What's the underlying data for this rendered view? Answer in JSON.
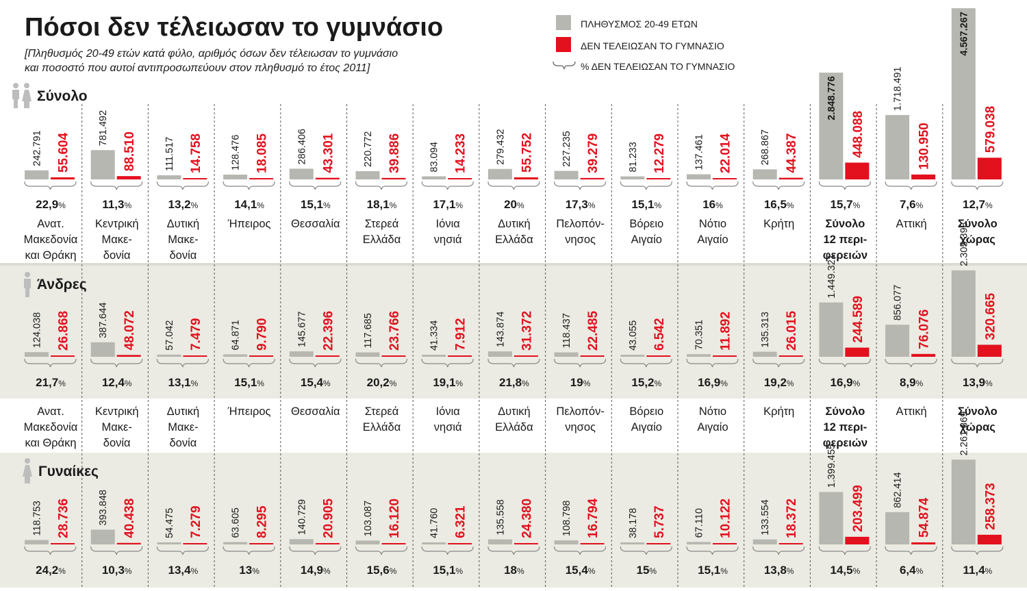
{
  "title": "Πόσοι δεν τέλειωσαν το γυμνάσιο",
  "subtitle_lines": [
    "[Πληθυσμός 20-49 ετών κατά φύλο, αριθμός όσων δεν τέλειωσαν το γυμνάσιο",
    "και ποσοστό που αυτοί αντιπροσωπεύουν στον πληθυσμό το έτος 2011]"
  ],
  "legend": {
    "population": "ΠΛΗΘΥΣΜΟΣ 20-49 ΕΤΩΝ",
    "not_completed": "ΔΕΝ ΤΕΛΕΙΩΣΑΝ ΤΟ ΓΥΜΝΑΣΙΟ",
    "percent": "% ΔΕΝ ΤΕΛΕΙΩΣΑΝ ΤΟ ΓΥΜΝΑΣΙΟ"
  },
  "colors": {
    "population": "#b7b7b1",
    "not_completed": "#e3101e",
    "band": "#ebebe3",
    "text": "#1a1a1a",
    "divider": "#555555"
  },
  "icons": {
    "total": "male-female-icon",
    "men": "male-icon",
    "women": "female-icon"
  },
  "chart_data": {
    "type": "bar",
    "categories": [
      {
        "lines": [
          "Ανατ.",
          "Μακεδονία",
          "και Θράκη"
        ],
        "bold": false
      },
      {
        "lines": [
          "Κεντρική",
          "Μακε-",
          "δονία"
        ],
        "bold": false
      },
      {
        "lines": [
          "Δυτική",
          "Μακε-",
          "δονία"
        ],
        "bold": false
      },
      {
        "lines": [
          "Ήπειρος"
        ],
        "bold": false
      },
      {
        "lines": [
          "Θεσσαλία"
        ],
        "bold": false
      },
      {
        "lines": [
          "Στερεά",
          "Ελλάδα"
        ],
        "bold": false
      },
      {
        "lines": [
          "Ιόνια",
          "νησιά"
        ],
        "bold": false
      },
      {
        "lines": [
          "Δυτική",
          "Ελλάδα"
        ],
        "bold": false
      },
      {
        "lines": [
          "Πελοπόν-",
          "νησος"
        ],
        "bold": false
      },
      {
        "lines": [
          "Βόρειο",
          "Αιγαίο"
        ],
        "bold": false
      },
      {
        "lines": [
          "Νότιο",
          "Αιγαίο"
        ],
        "bold": false
      },
      {
        "lines": [
          "Κρήτη"
        ],
        "bold": false
      },
      {
        "lines": [
          "Σύνολο",
          "12 περι-",
          "φερειών"
        ],
        "bold": true
      },
      {
        "lines": [
          "Αττική"
        ],
        "bold": false
      },
      {
        "lines": [
          "Σύνολο",
          "χώρας"
        ],
        "bold": true
      }
    ],
    "panels": [
      {
        "label": "Σύνολο",
        "population": [
          242791,
          781492,
          111517,
          128476,
          286406,
          220772,
          83094,
          279432,
          227235,
          81233,
          137461,
          268867,
          2848776,
          1718491,
          4567267
        ],
        "population_labels": [
          "242.791",
          "781.492",
          "111.517",
          "128.476",
          "286.406",
          "220.772",
          "83.094",
          "279.432",
          "227.235",
          "81.233",
          "137.461",
          "268.867",
          "2.848.776",
          "1.718.491",
          "4.567.267"
        ],
        "not_completed": [
          55604,
          88510,
          14758,
          18085,
          43301,
          39886,
          14233,
          55752,
          39279,
          12279,
          22014,
          44387,
          448088,
          130950,
          579038
        ],
        "not_completed_labels": [
          "55.604",
          "88.510",
          "14.758",
          "18.085",
          "43.301",
          "39.886",
          "14.233",
          "55.752",
          "39.279",
          "12.279",
          "22.014",
          "44.387",
          "448.088",
          "130.950",
          "579.038"
        ],
        "percent": [
          "22,9",
          "11,3",
          "13,2",
          "14,1",
          "15,1",
          "18,1",
          "17,1",
          "20",
          "17,3",
          "15,1",
          "16",
          "16,5",
          "15,7",
          "7,6",
          "12,7"
        ]
      },
      {
        "label": "Άνδρες",
        "population": [
          124038,
          387644,
          57042,
          64871,
          145677,
          117685,
          41334,
          143874,
          118437,
          43055,
          70351,
          135313,
          1449321,
          856077,
          2305398
        ],
        "population_labels": [
          "124.038",
          "387.644",
          "57.042",
          "64.871",
          "145.677",
          "117.685",
          "41.334",
          "143.874",
          "118.437",
          "43.055",
          "70.351",
          "135.313",
          "1.449.321",
          "856.077",
          "2.305.398"
        ],
        "not_completed": [
          26868,
          48072,
          7479,
          9790,
          22396,
          23766,
          7912,
          31372,
          22485,
          6542,
          11892,
          26015,
          244589,
          76076,
          320665
        ],
        "not_completed_labels": [
          "26.868",
          "48.072",
          "7.479",
          "9.790",
          "22.396",
          "23.766",
          "7.912",
          "31.372",
          "22.485",
          "6.542",
          "11.892",
          "26.015",
          "244.589",
          "76.076",
          "320.665"
        ],
        "percent": [
          "21,7",
          "12,4",
          "13,1",
          "15,1",
          "15,4",
          "20,2",
          "19,1",
          "21,8",
          "19",
          "15,2",
          "16,9",
          "19,2",
          "16,9",
          "8,9",
          "13,9"
        ]
      },
      {
        "label": "Γυναίκες",
        "population": [
          118753,
          393848,
          54475,
          63605,
          140729,
          103087,
          41760,
          135558,
          108798,
          38178,
          67110,
          133554,
          1399455,
          862414,
          2261869
        ],
        "population_labels": [
          "118.753",
          "393.848",
          "54.475",
          "63.605",
          "140.729",
          "103.087",
          "41.760",
          "135.558",
          "108.798",
          "38.178",
          "67.110",
          "133.554",
          "1.399.455",
          "862.414",
          "2.261.869"
        ],
        "not_completed": [
          28736,
          40438,
          7279,
          8295,
          20905,
          16120,
          6321,
          24380,
          16794,
          5737,
          10122,
          18372,
          203499,
          54874,
          258373
        ],
        "not_completed_labels": [
          "28.736",
          "40.438",
          "7.279",
          "8.295",
          "20.905",
          "16.120",
          "6.321",
          "24.380",
          "16.794",
          "5.737",
          "10.122",
          "18.372",
          "203.499",
          "54.874",
          "258.373"
        ],
        "percent": [
          "24,2",
          "10,3",
          "13,4",
          "13",
          "14,9",
          "15,6",
          "15,1",
          "18",
          "15,4",
          "15",
          "15,1",
          "13,8",
          "14,5",
          "6,4",
          "11,4"
        ]
      }
    ]
  }
}
